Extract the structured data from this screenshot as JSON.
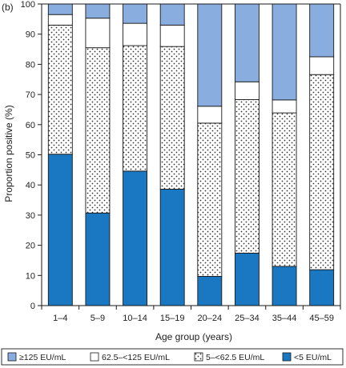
{
  "chart_data": {
    "type": "bar",
    "stacked": true,
    "panel_label": "(b)",
    "title": "",
    "xlabel": "Age group (years)",
    "ylabel": "Proportion positive (%)",
    "ylim": [
      0,
      100
    ],
    "yticks": [
      0,
      10,
      20,
      30,
      40,
      50,
      60,
      70,
      80,
      90,
      100
    ],
    "categories": [
      "1–4",
      "5–9",
      "10–14",
      "15–19",
      "20–24",
      "25–34",
      "35–44",
      "45–59"
    ],
    "series": [
      {
        "name": "<5 EU/mL",
        "values": [
          50.2,
          30.7,
          44.6,
          38.6,
          9.7,
          17.4,
          13.0,
          11.9
        ],
        "color": "#1a78c2",
        "pattern": "solid"
      },
      {
        "name": "5–<62.5 EU/mL",
        "values": [
          42.8,
          54.8,
          41.6,
          47.3,
          50.8,
          50.9,
          50.9,
          64.7
        ],
        "color": "#ffffff",
        "pattern": "dots"
      },
      {
        "name": "62.5–<125 EU/mL",
        "values": [
          3.5,
          9.8,
          7.4,
          7.1,
          5.6,
          5.9,
          4.3,
          5.9
        ],
        "color": "#ffffff",
        "pattern": "none"
      },
      {
        "name": "≥125 EU/mL",
        "values": [
          3.5,
          4.7,
          6.4,
          7.0,
          33.9,
          25.8,
          31.8,
          17.5
        ],
        "color": "#8aade0",
        "pattern": "solid"
      }
    ],
    "legend": {
      "position": "bottom",
      "entries": [
        {
          "label": "≥125 EU/mL",
          "series": 3
        },
        {
          "label": "62.5–<125 EU/mL",
          "series": 2
        },
        {
          "label": "5–<62.5 EU/mL",
          "series": 1
        },
        {
          "label": "<5 EU/mL",
          "series": 0
        }
      ]
    },
    "grid": false
  }
}
